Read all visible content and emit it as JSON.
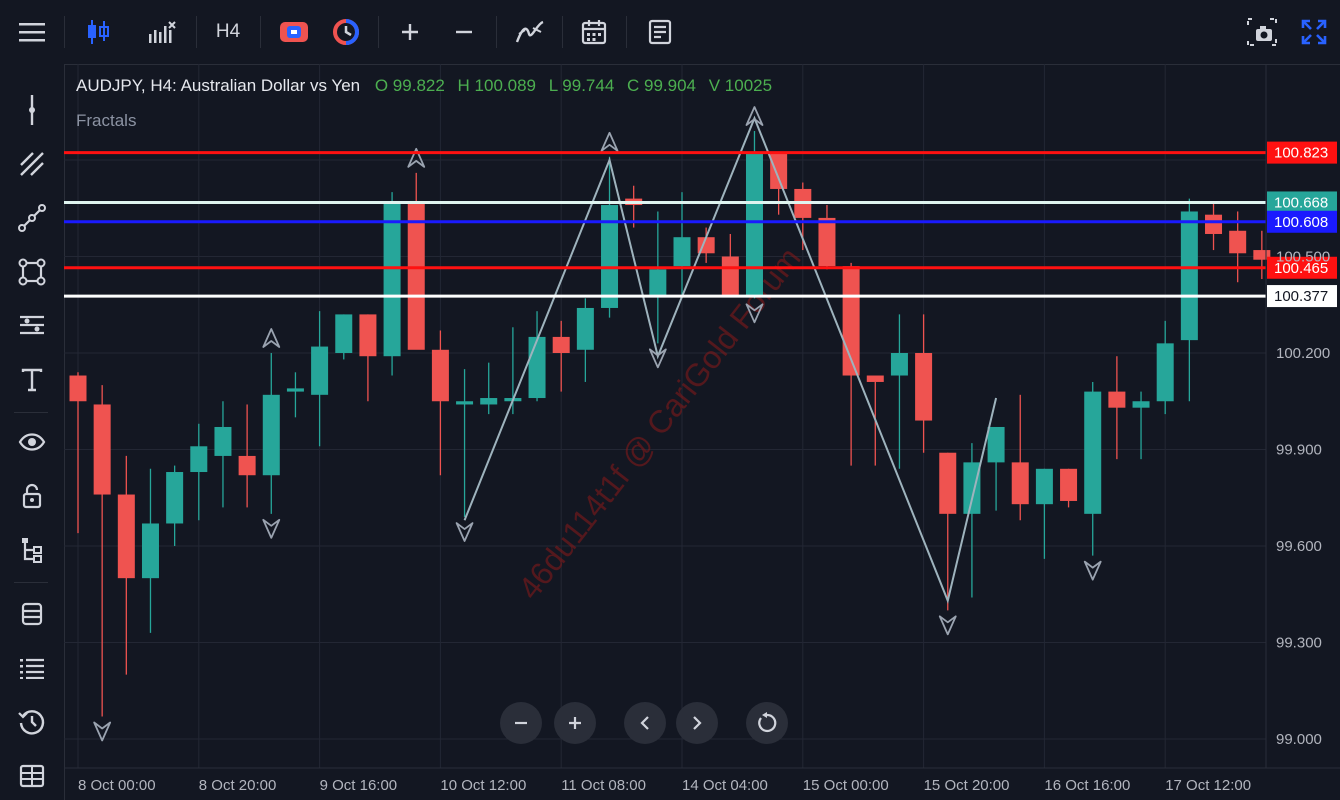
{
  "toolbar": {
    "timeframe": "H4",
    "items": [
      "menu-icon",
      "candles-icon",
      "indicators-icon",
      "timeframe",
      "compare-icon",
      "replay-icon",
      "zoom-in-icon",
      "zoom-out-icon",
      "drawing-icon",
      "calendar-icon",
      "notes-icon",
      "screenshot-icon",
      "fullscreen-icon"
    ]
  },
  "sidebar": {
    "items": [
      "crosshair-icon",
      "trendline-icon",
      "fib-icon",
      "path-icon",
      "shape-icon",
      "measure-icon",
      "text-icon",
      "eye-icon",
      "lock-icon",
      "tree-icon",
      "layers-icon",
      "list-icon",
      "history-icon",
      "calendar-grid-icon"
    ]
  },
  "legend": {
    "title": "AUDJPY, H4: Australian Dollar vs Yen",
    "open": "O 99.822",
    "high": "H 100.089",
    "low": "L 99.744",
    "close": "C 99.904",
    "volume": "V 10025",
    "indicator": "Fractals"
  },
  "watermark": "46du114t1f @ CariGold Forum",
  "colors": {
    "background": "#131722",
    "up": "#26a69a",
    "down": "#ef5350",
    "red_line": "#ff1111",
    "blue_line": "#1a1aff",
    "white_line": "#ffffff",
    "teal_line": "#cfeee8",
    "zigzag": "#9eb3bd"
  },
  "nav": [
    "zoom-out-button",
    "zoom-in-button",
    "scroll-left-button",
    "scroll-right-button",
    "reset-button"
  ],
  "chart_data": {
    "type": "candlestick",
    "symbol": "AUDJPY",
    "timeframe": "H4",
    "ylim": [
      98.95,
      101.05
    ],
    "y_ticks": [
      "99.000",
      "99.300",
      "99.600",
      "99.900",
      "100.200",
      "100.500"
    ],
    "x_ticks": [
      "8 Oct 00:00",
      "8 Oct 20:00",
      "9 Oct 16:00",
      "10 Oct 12:00",
      "11 Oct 08:00",
      "14 Oct 04:00",
      "15 Oct 00:00",
      "15 Oct 20:00",
      "16 Oct 16:00",
      "17 Oct 12:00"
    ],
    "candles": [
      {
        "o": 100.13,
        "h": 100.14,
        "l": 99.64,
        "c": 100.05
      },
      {
        "o": 100.04,
        "h": 100.1,
        "l": 99.07,
        "c": 99.76
      },
      {
        "o": 99.76,
        "h": 99.88,
        "l": 99.2,
        "c": 99.5
      },
      {
        "o": 99.5,
        "h": 99.84,
        "l": 99.33,
        "c": 99.67
      },
      {
        "o": 99.67,
        "h": 99.85,
        "l": 99.6,
        "c": 99.83
      },
      {
        "o": 99.83,
        "h": 99.98,
        "l": 99.68,
        "c": 99.91
      },
      {
        "o": 99.88,
        "h": 100.05,
        "l": 99.72,
        "c": 99.97
      },
      {
        "o": 99.88,
        "h": 100.04,
        "l": 99.72,
        "c": 99.82
      },
      {
        "o": 99.82,
        "h": 100.2,
        "l": 99.7,
        "c": 100.07
      },
      {
        "o": 100.08,
        "h": 100.14,
        "l": 100.0,
        "c": 100.09
      },
      {
        "o": 100.07,
        "h": 100.33,
        "l": 99.91,
        "c": 100.22
      },
      {
        "o": 100.2,
        "h": 100.32,
        "l": 100.18,
        "c": 100.32
      },
      {
        "o": 100.32,
        "h": 100.32,
        "l": 100.05,
        "c": 100.19
      },
      {
        "o": 100.19,
        "h": 100.7,
        "l": 100.13,
        "c": 100.67
      },
      {
        "o": 100.67,
        "h": 100.76,
        "l": 100.22,
        "c": 100.21
      },
      {
        "o": 100.21,
        "h": 100.27,
        "l": 99.82,
        "c": 100.05
      },
      {
        "o": 100.04,
        "h": 100.15,
        "l": 99.69,
        "c": 100.05
      },
      {
        "o": 100.04,
        "h": 100.17,
        "l": 100.01,
        "c": 100.06
      },
      {
        "o": 100.05,
        "h": 100.28,
        "l": 100.01,
        "c": 100.06
      },
      {
        "o": 100.06,
        "h": 100.33,
        "l": 100.05,
        "c": 100.25
      },
      {
        "o": 100.25,
        "h": 100.3,
        "l": 100.08,
        "c": 100.2
      },
      {
        "o": 100.21,
        "h": 100.37,
        "l": 100.11,
        "c": 100.34
      },
      {
        "o": 100.34,
        "h": 100.81,
        "l": 100.31,
        "c": 100.66
      },
      {
        "o": 100.68,
        "h": 100.72,
        "l": 100.59,
        "c": 100.66
      },
      {
        "o": 100.38,
        "h": 100.64,
        "l": 100.23,
        "c": 100.46
      },
      {
        "o": 100.47,
        "h": 100.7,
        "l": 100.38,
        "c": 100.56
      },
      {
        "o": 100.56,
        "h": 100.59,
        "l": 100.48,
        "c": 100.51
      },
      {
        "o": 100.5,
        "h": 100.57,
        "l": 100.38,
        "c": 100.38
      },
      {
        "o": 100.38,
        "h": 100.89,
        "l": 100.37,
        "c": 100.82
      },
      {
        "o": 100.82,
        "h": 100.82,
        "l": 100.63,
        "c": 100.71
      },
      {
        "o": 100.71,
        "h": 100.73,
        "l": 100.52,
        "c": 100.62
      },
      {
        "o": 100.62,
        "h": 100.66,
        "l": 100.46,
        "c": 100.47
      },
      {
        "o": 100.47,
        "h": 100.48,
        "l": 99.85,
        "c": 100.13
      },
      {
        "o": 100.13,
        "h": 100.11,
        "l": 99.85,
        "c": 100.11
      },
      {
        "o": 100.13,
        "h": 100.32,
        "l": 99.84,
        "c": 100.2
      },
      {
        "o": 100.2,
        "h": 100.32,
        "l": 99.89,
        "c": 99.99
      },
      {
        "o": 99.89,
        "h": 99.89,
        "l": 99.4,
        "c": 99.7
      },
      {
        "o": 99.7,
        "h": 99.92,
        "l": 99.44,
        "c": 99.86
      },
      {
        "o": 99.86,
        "h": 99.96,
        "l": 99.71,
        "c": 99.97
      },
      {
        "o": 99.86,
        "h": 100.07,
        "l": 99.68,
        "c": 99.73
      },
      {
        "o": 99.73,
        "h": 99.84,
        "l": 99.56,
        "c": 99.84
      },
      {
        "o": 99.84,
        "h": 99.84,
        "l": 99.72,
        "c": 99.74
      },
      {
        "o": 99.7,
        "h": 100.11,
        "l": 99.57,
        "c": 100.08
      },
      {
        "o": 100.08,
        "h": 100.19,
        "l": 99.87,
        "c": 100.03
      },
      {
        "o": 100.03,
        "h": 100.08,
        "l": 99.87,
        "c": 100.05
      },
      {
        "o": 100.05,
        "h": 100.3,
        "l": 100.01,
        "c": 100.23
      },
      {
        "o": 100.24,
        "h": 100.68,
        "l": 100.05,
        "c": 100.64
      },
      {
        "o": 100.63,
        "h": 100.67,
        "l": 100.52,
        "c": 100.57
      },
      {
        "o": 100.58,
        "h": 100.64,
        "l": 100.42,
        "c": 100.51
      },
      {
        "o": 100.52,
        "h": 100.58,
        "l": 100.43,
        "c": 100.49
      }
    ],
    "horizontal_lines": [
      {
        "price": 100.823,
        "label": "100.823",
        "color": "#ff1111",
        "label_bg": "#ff1111",
        "label_fg": "#ffffff"
      },
      {
        "price": 100.668,
        "label": "100.668",
        "color": "#dff4f0",
        "label_bg": "#26a69a",
        "label_fg": "#ffffff"
      },
      {
        "price": 100.608,
        "label": "100.608",
        "color": "#1a1aff",
        "label_bg": "#1a1aff",
        "label_fg": "#ffffff"
      },
      {
        "price": 100.465,
        "label": "100.465",
        "color": "#ff1111",
        "label_bg": "#ff1111",
        "label_fg": "#ffffff"
      },
      {
        "price": 100.377,
        "label": "100.377",
        "color": "#ffffff",
        "label_bg": "#ffffff",
        "label_fg": "#131722"
      }
    ],
    "fractals": [
      {
        "i": 1,
        "type": "down"
      },
      {
        "i": 8,
        "type": "up"
      },
      {
        "i": 8,
        "type": "down"
      },
      {
        "i": 14,
        "type": "up"
      },
      {
        "i": 16,
        "type": "down"
      },
      {
        "i": 22,
        "type": "up"
      },
      {
        "i": 24,
        "type": "down"
      },
      {
        "i": 28,
        "type": "up"
      },
      {
        "i": 28,
        "type": "down"
      },
      {
        "i": 36,
        "type": "down"
      },
      {
        "i": 42,
        "type": "down"
      }
    ],
    "zigzag": [
      {
        "i": 16,
        "p": 99.68
      },
      {
        "i": 22,
        "p": 100.8
      },
      {
        "i": 24,
        "p": 100.19
      },
      {
        "i": 28,
        "p": 100.93
      },
      {
        "i": 36,
        "p": 99.43
      },
      {
        "i": 38,
        "p": 100.06
      }
    ]
  }
}
